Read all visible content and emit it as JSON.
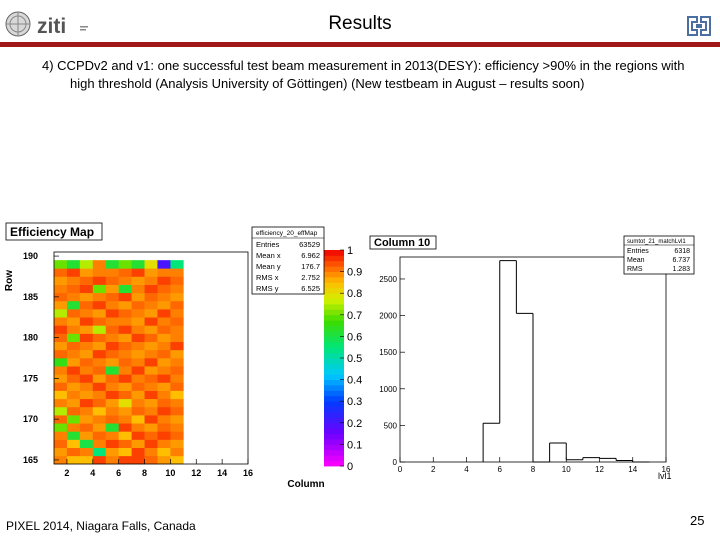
{
  "header": {
    "title": "Results",
    "logo_text": "ziti"
  },
  "body": {
    "bullet": "4) CCPDv2 and v1: one successful test beam measurement in 2013(DESY): efficiency >90% in the regions with high threshold (Analysis University of Göttingen) (New testbeam in August – results soon)"
  },
  "footer": {
    "conference": "PIXEL 2014, Niagara Falls, Canada",
    "page_number": "25"
  },
  "colors": {
    "accent": "#a01818"
  },
  "chart_data": [
    {
      "type": "heatmap",
      "title": "Efficiency Map",
      "xlabel": "Column",
      "ylabel": "Row",
      "xlim": [
        1,
        16
      ],
      "ylim": [
        164.5,
        190.5
      ],
      "x_ticks": [
        2,
        4,
        6,
        8,
        10,
        12,
        14,
        16
      ],
      "y_ticks": [
        165,
        170,
        175,
        180,
        185,
        190
      ],
      "z_ticks": [
        "0",
        "0.1",
        "0.2",
        "0.3",
        "0.4",
        "0.5",
        "0.6",
        "0.7",
        "0.8",
        "0.9",
        "1"
      ],
      "zlim": [
        0,
        1
      ],
      "stats": {
        "name": "efficiency_20_effMap",
        "rows": [
          {
            "label": "Entries",
            "value": "63529"
          },
          {
            "label": "Mean x",
            "value": "6.962"
          },
          {
            "label": "Mean y",
            "value": "176.7"
          },
          {
            "label": "RMS x",
            "value": "2.752"
          },
          {
            "label": "RMS y",
            "value": "6.525"
          }
        ]
      },
      "x_bin_start": 1,
      "x_bin_width": 1,
      "y_bin_low": 164.5,
      "y_bin_width": 1,
      "z": [
        [
          0.9,
          0.85,
          0.85,
          0.95,
          0.9,
          0.95,
          0.95,
          0.92,
          0.88,
          0.85
        ],
        [
          0.88,
          0.92,
          0.9,
          0.55,
          0.88,
          0.85,
          0.95,
          0.9,
          0.85,
          0.9
        ],
        [
          0.92,
          0.85,
          0.6,
          0.9,
          0.95,
          0.92,
          0.88,
          0.95,
          0.9,
          0.88
        ],
        [
          0.9,
          0.62,
          0.88,
          0.92,
          0.9,
          0.85,
          0.95,
          0.92,
          0.95,
          0.92
        ],
        [
          0.7,
          0.9,
          0.92,
          0.88,
          0.62,
          0.95,
          0.9,
          0.88,
          0.92,
          0.9
        ],
        [
          0.92,
          0.7,
          0.88,
          0.9,
          0.92,
          0.9,
          0.85,
          0.95,
          0.9,
          0.88
        ],
        [
          0.75,
          0.92,
          0.9,
          0.85,
          0.9,
          0.88,
          0.92,
          0.9,
          0.95,
          0.92
        ],
        [
          0.9,
          0.88,
          0.95,
          0.92,
          0.88,
          0.8,
          0.9,
          0.88,
          0.92,
          0.9
        ],
        [
          0.85,
          0.9,
          0.88,
          0.9,
          0.95,
          0.92,
          0.88,
          0.95,
          0.9,
          0.85
        ],
        [
          0.92,
          0.88,
          0.9,
          0.95,
          0.9,
          0.88,
          0.92,
          0.9,
          0.88,
          0.92
        ],
        [
          0.88,
          0.92,
          0.95,
          0.88,
          0.92,
          0.95,
          0.9,
          0.92,
          0.95,
          0.9
        ],
        [
          0.9,
          0.95,
          0.9,
          0.92,
          0.62,
          0.9,
          0.95,
          0.88,
          0.9,
          0.92
        ],
        [
          0.65,
          0.88,
          0.92,
          0.9,
          0.88,
          0.92,
          0.9,
          0.95,
          0.88,
          0.9
        ],
        [
          0.92,
          0.9,
          0.88,
          0.95,
          0.92,
          0.9,
          0.88,
          0.9,
          0.92,
          0.88
        ],
        [
          0.88,
          0.92,
          0.9,
          0.88,
          0.95,
          0.92,
          0.9,
          0.88,
          0.9,
          0.95
        ],
        [
          0.92,
          0.7,
          0.95,
          0.92,
          0.9,
          0.88,
          0.95,
          0.92,
          0.88,
          0.9
        ],
        [
          0.95,
          0.9,
          0.88,
          0.75,
          0.92,
          0.95,
          0.9,
          0.88,
          0.92,
          0.9
        ],
        [
          0.9,
          0.88,
          0.95,
          0.92,
          0.9,
          0.9,
          0.88,
          0.95,
          0.9,
          0.92
        ],
        [
          0.75,
          0.92,
          0.9,
          0.88,
          0.95,
          0.92,
          0.9,
          0.88,
          0.95,
          0.9
        ],
        [
          0.88,
          0.62,
          0.92,
          0.95,
          0.9,
          0.88,
          0.92,
          0.9,
          0.88,
          0.92
        ],
        [
          0.92,
          0.9,
          0.88,
          0.9,
          0.92,
          0.95,
          0.88,
          0.92,
          0.9,
          0.88
        ],
        [
          0.9,
          0.92,
          0.95,
          0.7,
          0.88,
          0.62,
          0.9,
          0.95,
          0.92,
          0.9
        ],
        [
          0.88,
          0.9,
          0.92,
          0.95,
          0.92,
          0.9,
          0.88,
          0.9,
          0.95,
          0.92
        ],
        [
          0.92,
          0.95,
          0.88,
          0.9,
          0.9,
          0.92,
          0.95,
          0.88,
          0.9,
          0.9
        ],
        [
          0.7,
          0.62,
          0.75,
          0.9,
          0.62,
          0.7,
          0.62,
          0.8,
          0.2,
          0.55
        ]
      ]
    },
    {
      "type": "bar",
      "title": "Column 10",
      "xlabel": "lvl1",
      "ylabel": "",
      "xlim": [
        0,
        16
      ],
      "ylim": [
        0,
        2800
      ],
      "x_ticks": [
        0,
        2,
        4,
        6,
        8,
        10,
        12,
        14,
        16
      ],
      "y_ticks": [
        0,
        500,
        1000,
        1500,
        2000,
        2500
      ],
      "stats": {
        "name": "sumtot_21_matchLvl1",
        "rows": [
          {
            "label": "Entries",
            "value": "6318"
          },
          {
            "label": "Mean",
            "value": "6.737"
          },
          {
            "label": "RMS",
            "value": "1.283"
          }
        ]
      },
      "bins": [
        {
          "x0": 5,
          "x1": 6,
          "value": 530
        },
        {
          "x0": 6,
          "x1": 7,
          "value": 2750
        },
        {
          "x0": 7,
          "x1": 8,
          "value": 2030
        },
        {
          "x0": 8,
          "x1": 9,
          "value": 0
        },
        {
          "x0": 9,
          "x1": 10,
          "value": 260
        },
        {
          "x0": 10,
          "x1": 11,
          "value": 30
        },
        {
          "x0": 11,
          "x1": 12,
          "value": 60
        },
        {
          "x0": 12,
          "x1": 13,
          "value": 50
        },
        {
          "x0": 13,
          "x1": 14,
          "value": 20
        },
        {
          "x0": 14,
          "x1": 15,
          "value": 0
        }
      ]
    }
  ]
}
